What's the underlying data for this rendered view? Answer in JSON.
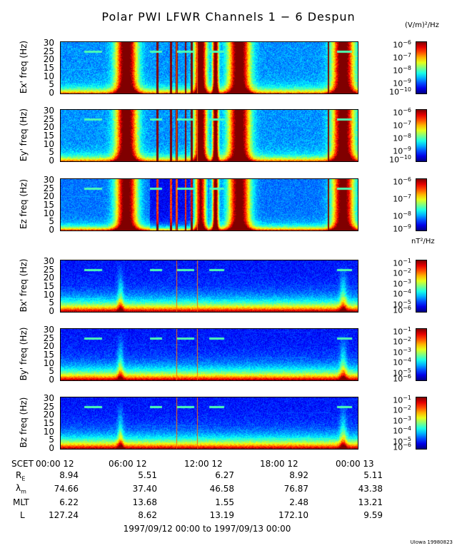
{
  "title": "Polar PWI LFWR Channels 1 − 6 Despun",
  "units": {
    "electric": "(V/m)²/Hz",
    "magnetic": "nT²/Hz"
  },
  "chart_data": [
    {
      "type": "heatmap",
      "ylabel": "Ex' freq (Hz)",
      "yticks": [
        0,
        5,
        10,
        15,
        20,
        25,
        30
      ],
      "ylim": [
        0,
        30
      ],
      "colorbar_labels": [
        "10^-6",
        "10^-7",
        "10^-8",
        "10^-9",
        "10^-10"
      ],
      "colorbar_range": [
        -10,
        -6
      ]
    },
    {
      "type": "heatmap",
      "ylabel": "Ey' freq (Hz)",
      "yticks": [
        0,
        5,
        10,
        15,
        20,
        25,
        30
      ],
      "ylim": [
        0,
        30
      ],
      "colorbar_labels": [
        "10^-6",
        "10^-7",
        "10^-8",
        "10^-9",
        "10^-10"
      ],
      "colorbar_range": [
        -10,
        -6
      ]
    },
    {
      "type": "heatmap",
      "ylabel": "Ez freq (Hz)",
      "yticks": [
        0,
        5,
        10,
        15,
        20,
        25,
        30
      ],
      "ylim": [
        0,
        30
      ],
      "colorbar_labels": [
        "10^-6",
        "10^-7",
        "10^-8",
        "10^-9"
      ],
      "colorbar_range": [
        -9,
        -6
      ]
    },
    {
      "type": "heatmap",
      "ylabel": "Bx' freq (Hz)",
      "yticks": [
        0,
        5,
        10,
        15,
        20,
        25,
        30
      ],
      "ylim": [
        0,
        30
      ],
      "colorbar_labels": [
        "10^-1",
        "10^-2",
        "10^-3",
        "10^-4",
        "10^-5",
        "10^-6"
      ],
      "colorbar_range": [
        -6,
        -1
      ]
    },
    {
      "type": "heatmap",
      "ylabel": "By' freq (Hz)",
      "yticks": [
        0,
        5,
        10,
        15,
        20,
        25,
        30
      ],
      "ylim": [
        0,
        30
      ],
      "colorbar_labels": [
        "10^-1",
        "10^-2",
        "10^-3",
        "10^-4",
        "10^-5",
        "10^-6"
      ],
      "colorbar_range": [
        -6,
        -1
      ]
    },
    {
      "type": "heatmap",
      "ylabel": "Bz freq (Hz)",
      "yticks": [
        0,
        5,
        10,
        15,
        20,
        25,
        30
      ],
      "ylim": [
        0,
        30
      ],
      "colorbar_labels": [
        "10^-1",
        "10^-2",
        "10^-3",
        "10^-4",
        "10^-5",
        "10^-6"
      ],
      "colorbar_range": [
        -6,
        -1
      ]
    }
  ],
  "x_axis": {
    "prefix": "SCET",
    "ticks": [
      "00:00 12",
      "06:00 12",
      "12:00 12",
      "18:00 12",
      "00:00 13"
    ]
  },
  "ephemeris": [
    {
      "label": "R_E",
      "values": [
        "8.94",
        "5.51",
        "6.27",
        "8.92",
        "5.11"
      ]
    },
    {
      "label": "λ_m",
      "values": [
        "74.66",
        "37.40",
        "46.58",
        "76.87",
        "43.38"
      ]
    },
    {
      "label": "MLT",
      "values": [
        "6.22",
        "13.68",
        "1.55",
        "2.48",
        "13.21"
      ]
    },
    {
      "label": "L",
      "values": [
        "127.24",
        "8.62",
        "13.19",
        "172.10",
        "9.59"
      ]
    }
  ],
  "date_range": "1997/09/12 00:00 to 1997/09/13 00:00",
  "credit": "UIowa 19980823"
}
